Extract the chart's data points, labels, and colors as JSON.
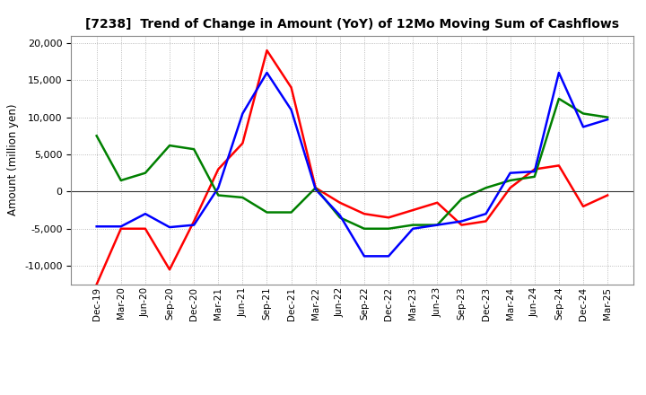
{
  "title": "[7238]  Trend of Change in Amount (YoY) of 12Mo Moving Sum of Cashflows",
  "ylabel": "Amount (million yen)",
  "x_labels": [
    "Dec-19",
    "Mar-20",
    "Jun-20",
    "Sep-20",
    "Dec-20",
    "Mar-21",
    "Jun-21",
    "Sep-21",
    "Dec-21",
    "Mar-22",
    "Jun-22",
    "Sep-22",
    "Dec-22",
    "Mar-23",
    "Jun-23",
    "Sep-23",
    "Dec-23",
    "Mar-24",
    "Jun-24",
    "Sep-24",
    "Dec-24",
    "Mar-25"
  ],
  "operating": [
    -12500,
    -5000,
    -5000,
    -10500,
    -4000,
    3000,
    6500,
    19000,
    14000,
    500,
    -1500,
    -3000,
    -3500,
    -2500,
    -1500,
    -4500,
    -4000,
    500,
    3000,
    3500,
    -2000,
    -500
  ],
  "investing": [
    7500,
    1500,
    2500,
    6200,
    5700,
    -500,
    -800,
    -2800,
    -2800,
    500,
    -3500,
    -5000,
    -5000,
    -4500,
    -4500,
    -1000,
    500,
    1500,
    2000,
    12500,
    10500,
    10000
  ],
  "free": [
    -4700,
    -4700,
    -3000,
    -4800,
    -4500,
    500,
    10500,
    16000,
    11000,
    300,
    -3200,
    -8700,
    -8700,
    -5000,
    -4500,
    -4000,
    -3000,
    2500,
    2700,
    16000,
    8700,
    9700
  ],
  "ylim": [
    -12500,
    21000
  ],
  "yticks": [
    -10000,
    -5000,
    0,
    5000,
    10000,
    15000,
    20000
  ],
  "operating_color": "#ff0000",
  "investing_color": "#008000",
  "free_color": "#0000ff",
  "line_width": 1.8,
  "bg_color": "#ffffff",
  "grid_color": "#aaaaaa"
}
